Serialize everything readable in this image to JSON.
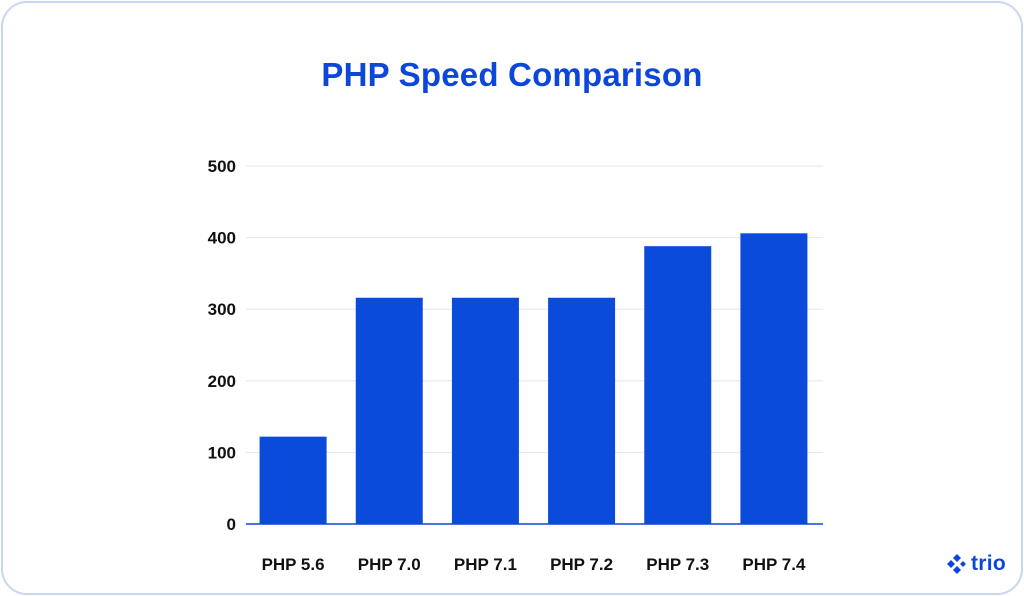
{
  "chart_data": {
    "type": "bar",
    "title": "PHP Speed Comparison",
    "categories": [
      "PHP 5.6",
      "PHP 7.0",
      "PHP 7.1",
      "PHP 7.2",
      "PHP 7.3",
      "PHP 7.4"
    ],
    "values": [
      122,
      316,
      316,
      316,
      388,
      406
    ],
    "xlabel": "",
    "ylabel": "",
    "ylim": [
      0,
      500
    ],
    "yticks": [
      0,
      100,
      200,
      300,
      400,
      500
    ],
    "grid": true,
    "bar_color": "#0a4bdc",
    "title_color": "#0d47d9",
    "axis_color": "#0d47d9",
    "grid_color": "#e3e6ec"
  },
  "brand": {
    "name": "trio",
    "icon": "trio-logo-icon",
    "color": "#0d47d9"
  }
}
